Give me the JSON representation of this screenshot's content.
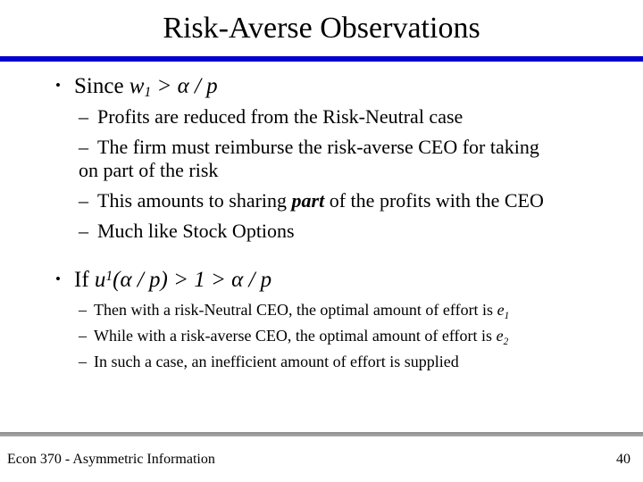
{
  "title": "Risk-Averse Observations",
  "colors": {
    "title_rule_blue": "#0000cc",
    "footer_rule_gray": "#9e9e9e",
    "text": "#000000",
    "background": "#ffffff"
  },
  "markers": {
    "level1": "•",
    "level2": "–"
  },
  "section1": {
    "lead": {
      "prefix": "Since ",
      "var": "w",
      "var_sub": "1",
      "math_rest": " > α / p"
    },
    "items": [
      {
        "text": "Profits are reduced from the Risk-Neutral case"
      },
      {
        "line1": "The firm must reimburse the risk-averse CEO for taking",
        "line2": "on part of the risk"
      },
      {
        "prefix": "This amounts to sharing ",
        "emphasis": "part",
        "suffix": " of the profits with the CEO"
      },
      {
        "text": "Much like Stock Options"
      }
    ]
  },
  "section2": {
    "lead": {
      "prefix": "If ",
      "var": "u",
      "var_sup": "1",
      "math_rest": "(α / p) > 1 > α / p"
    },
    "items": [
      {
        "prefix": "Then with a risk-Neutral CEO, the optimal amount of effort is ",
        "var": "e",
        "var_sub": "1"
      },
      {
        "prefix": "While with a risk-averse CEO, the optimal amount of effort is ",
        "var": "e",
        "var_sub": "2"
      },
      {
        "text": "In such a case, an inefficient amount of effort is supplied"
      }
    ]
  },
  "footer": {
    "course": "Econ 370 - Asymmetric Information",
    "page_number": "40"
  }
}
